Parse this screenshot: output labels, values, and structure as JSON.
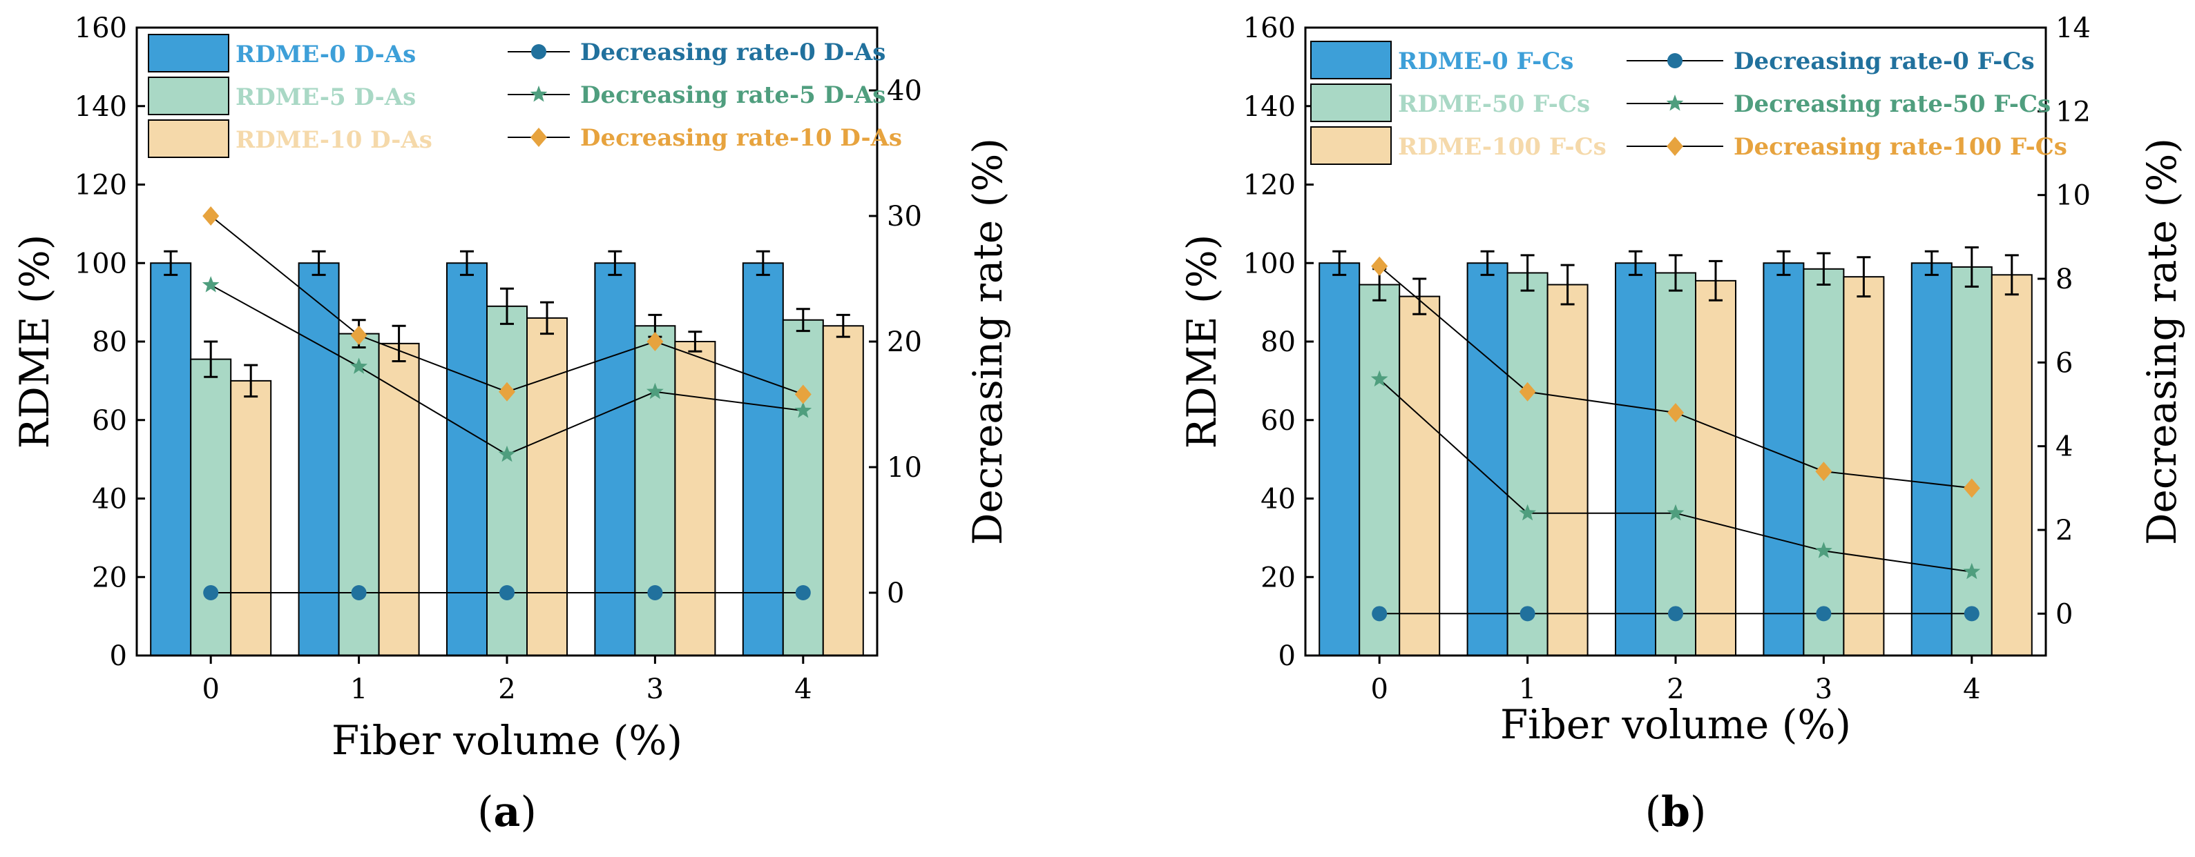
{
  "chart_data": [
    {
      "type": "bar",
      "panel_label": "a",
      "xlabel": "Fiber volume (%)",
      "ylabel": "RDME (%)",
      "y2label": "Decreasing rate (%)",
      "categories": [
        "0",
        "1",
        "2",
        "3",
        "4"
      ],
      "ylim": [
        0,
        160
      ],
      "yticks": [
        0,
        20,
        40,
        60,
        80,
        100,
        120,
        140,
        160
      ],
      "y2lim": [
        -5,
        45
      ],
      "y2ticks": [
        0,
        10,
        20,
        30,
        40
      ],
      "series": [
        {
          "name": "RDME-0 D-As",
          "values": [
            100,
            100,
            100,
            100,
            100
          ],
          "errors": [
            3,
            3,
            3,
            3,
            3
          ],
          "fill": "#3d9fd8",
          "label_color": "#3d9fd8"
        },
        {
          "name": "RDME-5 D-As",
          "values": [
            75.5,
            82,
            89,
            84,
            85.5
          ],
          "errors": [
            4.5,
            3.5,
            4.5,
            2.8,
            2.8
          ],
          "fill": "#a9d8c5",
          "label_color": "#a9d8c5"
        },
        {
          "name": "RDME-10 D-As",
          "values": [
            70,
            79.5,
            86,
            80,
            84
          ],
          "errors": [
            4,
            4.5,
            4,
            2.5,
            2.8
          ],
          "fill": "#f5d9aa",
          "label_color": "#f5d9aa"
        }
      ],
      "line_series": [
        {
          "name": "Decreasing rate-0 D-As",
          "values": [
            0,
            0,
            0,
            0,
            0
          ],
          "marker": "circle",
          "color": "#21719d",
          "label_color": "#21719d"
        },
        {
          "name": "Decreasing rate-5 D-As",
          "values": [
            24.5,
            18,
            11,
            16,
            14.5
          ],
          "marker": "star",
          "color": "#4f9e7e",
          "label_color": "#4f9e7e"
        },
        {
          "name": "Decreasing rate-10 D-As",
          "values": [
            30,
            20.5,
            16,
            20,
            15.8
          ],
          "marker": "diamond",
          "color": "#e7a33e",
          "label_color": "#e7a33e"
        }
      ]
    },
    {
      "type": "bar",
      "panel_label": "b",
      "xlabel": "Fiber volume (%)",
      "ylabel": "RDME (%)",
      "y2label": "Decreasing rate (%)",
      "categories": [
        "0",
        "1",
        "2",
        "3",
        "4"
      ],
      "ylim": [
        0,
        160
      ],
      "yticks": [
        0,
        20,
        40,
        60,
        80,
        100,
        120,
        140,
        160
      ],
      "y2lim": [
        -1,
        14
      ],
      "y2ticks": [
        0,
        2,
        4,
        6,
        8,
        10,
        12,
        14
      ],
      "series": [
        {
          "name": "RDME-0 F-Cs",
          "values": [
            100,
            100,
            100,
            100,
            100
          ],
          "errors": [
            3,
            3,
            3,
            3,
            3
          ],
          "fill": "#3d9fd8",
          "label_color": "#3d9fd8"
        },
        {
          "name": "RDME-50 F-Cs",
          "values": [
            94.5,
            97.5,
            97.5,
            98.5,
            99
          ],
          "errors": [
            4,
            4.5,
            4.5,
            4,
            5
          ],
          "fill": "#a9d8c5",
          "label_color": "#a9d8c5"
        },
        {
          "name": "RDME-100 F-Cs",
          "values": [
            91.5,
            94.5,
            95.5,
            96.5,
            97
          ],
          "errors": [
            4.5,
            5,
            5,
            5,
            5
          ],
          "fill": "#f5d9aa",
          "label_color": "#f5d9aa"
        }
      ],
      "line_series": [
        {
          "name": "Decreasing rate-0 F-Cs",
          "values": [
            0,
            0,
            0,
            0,
            0
          ],
          "marker": "circle",
          "color": "#21719d",
          "label_color": "#21719d"
        },
        {
          "name": "Decreasing rate-50 F-Cs",
          "values": [
            5.6,
            2.4,
            2.4,
            1.5,
            1.0
          ],
          "marker": "star",
          "color": "#4f9e7e",
          "label_color": "#4f9e7e"
        },
        {
          "name": "Decreasing rate-100 F-Cs",
          "values": [
            8.3,
            5.3,
            4.8,
            3.4,
            3.0
          ],
          "marker": "diamond",
          "color": "#e7a33e",
          "label_color": "#e7a33e"
        }
      ]
    }
  ]
}
